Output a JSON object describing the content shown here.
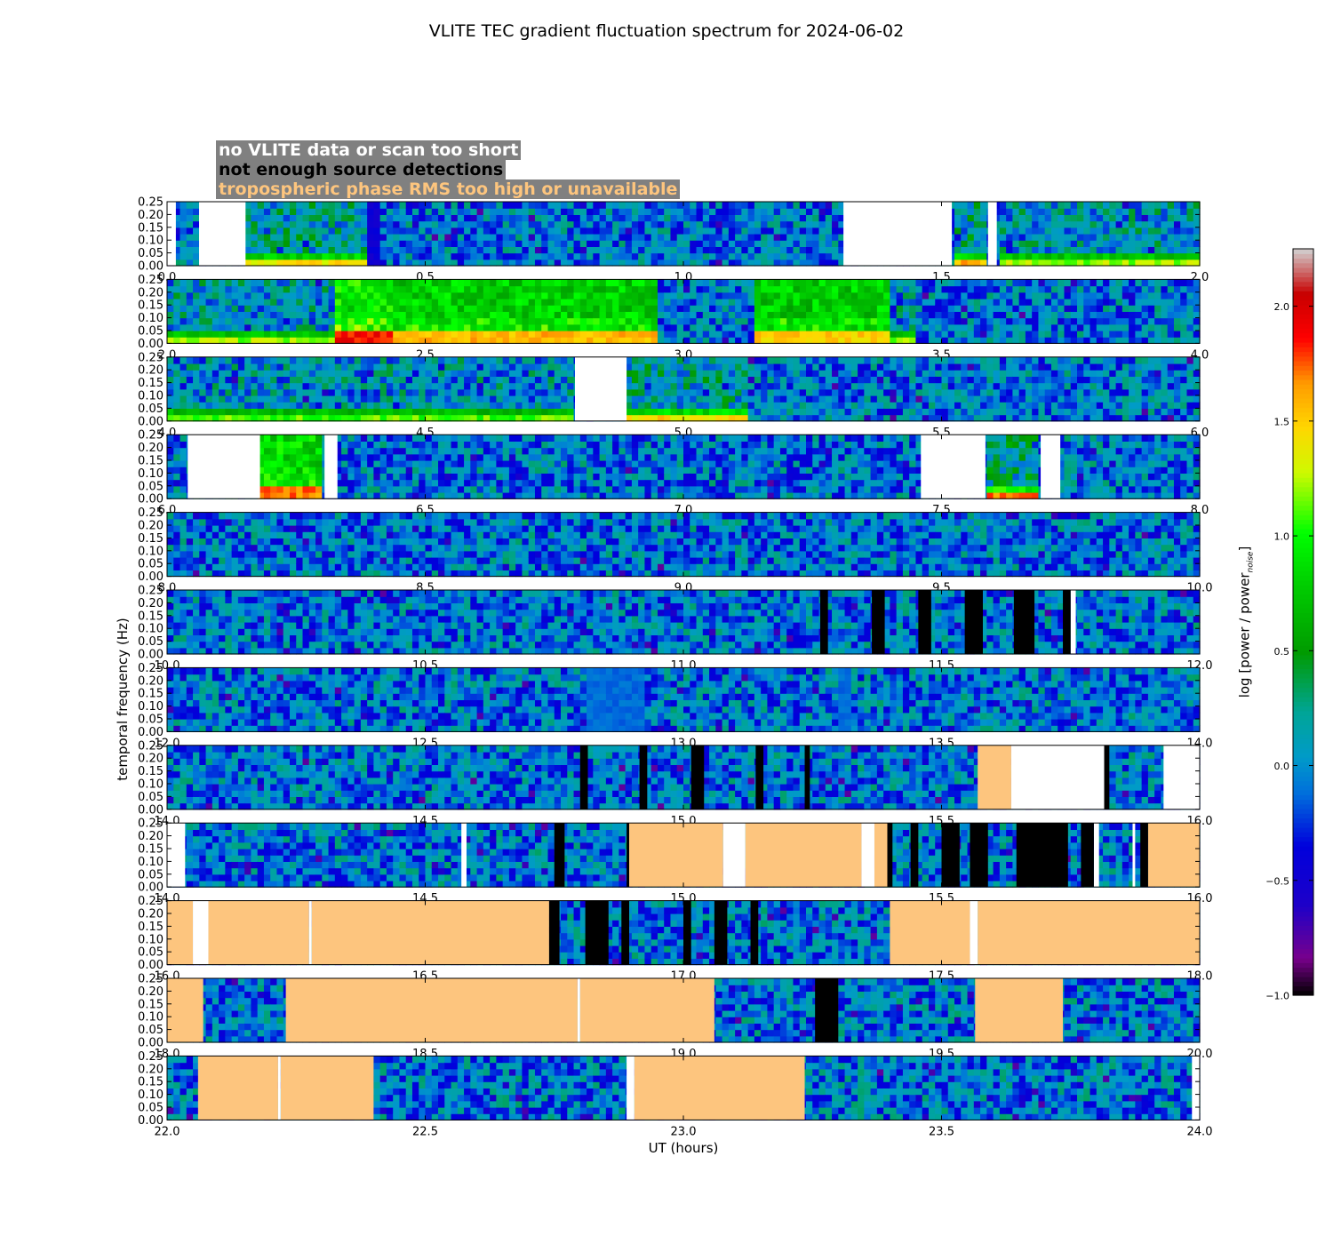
{
  "chart_data": {
    "type": "heatmap",
    "title": "VLITE TEC gradient fluctuation spectrum for 2024-06-02",
    "xlabel": "UT (hours)",
    "ylabel": "temporal frequency (Hz)",
    "colorbar_label": "log [power / power",
    "colorbar_label_sub": "noise",
    "colorbar_label_end": "]",
    "colorbar_range": [
      -1.0,
      2.25
    ],
    "colorbar_ticks": [
      "−1.0",
      "−0.5",
      "0.0",
      "0.5",
      "1.0",
      "1.5",
      "2.0"
    ],
    "colorbar_tick_values": [
      -1.0,
      -0.5,
      0.0,
      0.5,
      1.0,
      1.5,
      2.0
    ],
    "ytick_labels": [
      "0.00",
      "0.05",
      "0.10",
      "0.15",
      "0.20",
      "0.25"
    ],
    "ylim": [
      0,
      0.25
    ],
    "legend": [
      {
        "label": "no VLITE data or scan too short",
        "color": "#ffffff"
      },
      {
        "label": "not enough source detections",
        "color": "#000000"
      },
      {
        "label": "tropospheric phase RMS too high or unavailable",
        "color": "#fdc57e"
      }
    ],
    "panels": [
      {
        "xlim": [
          0,
          2
        ],
        "xticks": [
          "0.0",
          "0.5",
          "1.0",
          "1.5",
          "2.0"
        ],
        "gaps": [
          [
            0,
            0.017
          ],
          [
            0.062,
            0.152
          ],
          [
            1.31,
            1.52
          ],
          [
            1.59,
            1.607
          ]
        ],
        "black": [],
        "orange": [],
        "features": [
          {
            "x0": 0.152,
            "x1": 0.39,
            "type": "lowfreq",
            "s": 0.9
          },
          {
            "x0": 0.39,
            "x1": 0.41,
            "type": "dark"
          },
          {
            "x0": 1.52,
            "x1": 1.59,
            "type": "lowfreq",
            "s": 1.2
          },
          {
            "x0": 1.607,
            "x1": 2.0,
            "type": "lowfreq",
            "s": 0.6
          }
        ]
      },
      {
        "xlim": [
          2,
          4
        ],
        "xticks": [
          "2.0",
          "2.5",
          "3.0",
          "3.5",
          "4.0"
        ],
        "gaps": [],
        "black": [],
        "orange": [],
        "features": [
          {
            "x0": 2.0,
            "x1": 2.32,
            "type": "lowfreq",
            "s": 0.6
          },
          {
            "x0": 2.05,
            "x1": 2.1,
            "type": "dark"
          },
          {
            "x0": 2.32,
            "x1": 2.44,
            "type": "storm",
            "s": 1.4
          },
          {
            "x0": 2.44,
            "x1": 2.95,
            "type": "storm",
            "s": 0.9
          },
          {
            "x0": 3.14,
            "x1": 3.4,
            "type": "storm",
            "s": 0.8
          },
          {
            "x0": 3.4,
            "x1": 3.45,
            "type": "lowfreq",
            "s": 0.5
          }
        ]
      },
      {
        "xlim": [
          4,
          6
        ],
        "xticks": [
          "4.0",
          "4.5",
          "5.0",
          "5.5",
          "6.0"
        ],
        "gaps": [
          [
            4.79,
            4.89
          ]
        ],
        "black": [],
        "orange": [],
        "features": [
          {
            "x0": 4.0,
            "x1": 4.79,
            "type": "lowfreq",
            "s": 0.4
          },
          {
            "x0": 4.89,
            "x1": 5.13,
            "type": "lowfreq",
            "s": 1.0
          }
        ]
      },
      {
        "xlim": [
          6,
          8
        ],
        "xticks": [
          "6.0",
          "6.5",
          "7.0",
          "7.5",
          "8.0"
        ],
        "gaps": [
          [
            6.04,
            6.18
          ],
          [
            6.305,
            6.33
          ],
          [
            7.46,
            7.585
          ],
          [
            7.692,
            7.73
          ]
        ],
        "black": [],
        "orange": [],
        "features": [
          {
            "x0": 6.18,
            "x1": 6.305,
            "type": "storm",
            "s": 1.1
          },
          {
            "x0": 7.585,
            "x1": 7.692,
            "type": "lowfreq",
            "s": 1.4
          }
        ]
      },
      {
        "xlim": [
          8,
          10
        ],
        "xticks": [
          "8.0",
          "8.5",
          "9.0",
          "9.5",
          "10.0"
        ],
        "gaps": [],
        "black": [],
        "orange": [],
        "features": []
      },
      {
        "xlim": [
          10,
          12
        ],
        "xticks": [
          "10.0",
          "10.5",
          "11.0",
          "11.5",
          "12.0"
        ],
        "gaps": [
          [
            11.75,
            11.76
          ]
        ],
        "black": [
          [
            11.265,
            11.28
          ],
          [
            11.365,
            11.39
          ],
          [
            11.455,
            11.48
          ],
          [
            11.545,
            11.58
          ],
          [
            11.64,
            11.68
          ],
          [
            11.735,
            11.75
          ]
        ],
        "orange": [],
        "features": []
      },
      {
        "xlim": [
          12,
          14
        ],
        "xticks": [
          "12.0",
          "12.5",
          "13.0",
          "13.5",
          "14.0"
        ],
        "gaps": [],
        "black": [],
        "orange": [],
        "features": [
          {
            "x0": 12.81,
            "x1": 12.93,
            "type": "flat"
          },
          {
            "x0": 13.3,
            "x1": 13.33,
            "type": "flat"
          }
        ]
      },
      {
        "xlim": [
          14,
          16
        ],
        "xticks": [
          "14.0",
          "14.5",
          "15.0",
          "15.5",
          "16.0"
        ],
        "gaps": [
          [
            13.635,
            13.815
          ],
          [
            13.93,
            14.0
          ]
        ],
        "black": [
          [
            12.8,
            12.815
          ],
          [
            12.915,
            12.93
          ],
          [
            13.015,
            13.04
          ],
          [
            13.14,
            13.155
          ],
          [
            13.235,
            13.245
          ],
          [
            13.815,
            13.825
          ]
        ],
        "orange": [
          [
            13.57,
            13.635
          ]
        ],
        "features": [],
        "shift": -2
      },
      {
        "xlim": [
          14,
          16
        ],
        "xticks": [
          "14.0",
          "14.5",
          "15.0",
          "15.5",
          "16.0"
        ],
        "gaps": [
          [
            14.0,
            14.035
          ],
          [
            14.57,
            14.58
          ],
          [
            15.077,
            15.12
          ],
          [
            15.345,
            15.37
          ],
          [
            15.795,
            15.805
          ],
          [
            15.87,
            15.875
          ]
        ],
        "black": [
          [
            14.75,
            14.77
          ],
          [
            14.89,
            14.895
          ],
          [
            15.395,
            15.405
          ],
          [
            15.44,
            15.455
          ],
          [
            15.5,
            15.535
          ],
          [
            15.555,
            15.59
          ],
          [
            15.645,
            15.745
          ],
          [
            15.77,
            15.795
          ],
          [
            15.885,
            15.9
          ]
        ],
        "orange": [
          [
            14.895,
            15.077
          ],
          [
            15.12,
            15.345
          ],
          [
            15.37,
            15.395
          ],
          [
            15.9,
            16.0
          ]
        ],
        "features": []
      },
      {
        "xlim": [
          16,
          18
        ],
        "xticks": [
          "16.0",
          "16.5",
          "17.0",
          "17.5",
          "18.0"
        ],
        "gaps": [
          [
            16.05,
            16.08
          ],
          [
            16.275,
            16.28
          ],
          [
            17.555,
            17.57
          ]
        ],
        "black": [
          [
            16.74,
            16.76
          ],
          [
            16.81,
            16.855
          ],
          [
            16.88,
            16.895
          ],
          [
            17.0,
            17.015
          ],
          [
            17.06,
            17.085
          ],
          [
            17.13,
            17.145
          ]
        ],
        "orange": [
          [
            16.0,
            16.05
          ],
          [
            16.08,
            16.275
          ],
          [
            16.28,
            16.74
          ],
          [
            17.4,
            17.555
          ],
          [
            17.57,
            18.0
          ]
        ],
        "features": []
      },
      {
        "xlim": [
          18,
          20
        ],
        "xticks": [
          "18.0",
          "18.5",
          "19.0",
          "19.5",
          "20.0"
        ],
        "gaps": [
          [
            18.795,
            18.8
          ]
        ],
        "black": [
          [
            19.255,
            19.3
          ]
        ],
        "orange": [
          [
            18.0,
            18.07
          ],
          [
            18.23,
            18.795
          ],
          [
            18.8,
            19.06
          ],
          [
            19.565,
            19.735
          ]
        ],
        "features": []
      },
      {
        "xlim": [
          22,
          24
        ],
        "xticks": [
          "22.0",
          "22.5",
          "23.0",
          "23.5",
          "24.0"
        ],
        "gaps": [
          [
            22.215,
            22.22
          ],
          [
            22.89,
            22.905
          ],
          [
            23.985,
            24.0
          ]
        ],
        "black": [],
        "orange": [
          [
            22.06,
            22.215
          ],
          [
            22.22,
            22.4
          ],
          [
            22.905,
            23.235
          ]
        ],
        "features": []
      }
    ]
  }
}
